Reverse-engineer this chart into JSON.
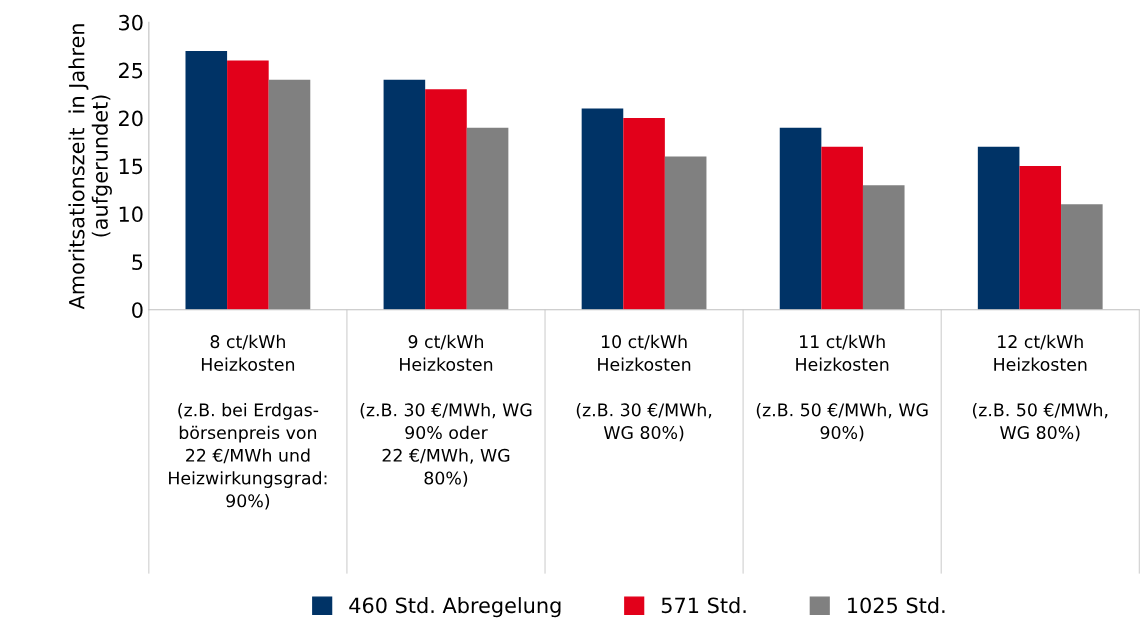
{
  "chart_data": {
    "type": "bar",
    "ylabel": "Amoritsationszeit  in Jahren\n(aufgerundet)",
    "categories": [
      "8 ct/kWh\nHeizkosten\n\n(z.B. bei Erdgas-\nbörsenpreis von\n22 €/MWh und\nHeizwirkungsgrad:\n90%)",
      "9 ct/kWh\nHeizkosten\n\n(z.B. 30 €/MWh, WG\n90% oder\n22 €/MWh, WG\n80%)",
      "10 ct/kWh\nHeizkosten\n\n(z.B. 30 €/MWh,\nWG 80%)",
      "11 ct/kWh\nHeizkosten\n\n(z.B. 50 €/MWh, WG\n90%)",
      "12 ct/kWh\nHeizkosten\n\n(z.B. 50 €/MWh,\nWG 80%)"
    ],
    "series": [
      {
        "name": "460 Std. Abregelung",
        "color": "#003366",
        "values": [
          27,
          24,
          21,
          19,
          17
        ]
      },
      {
        "name": "571 Std.",
        "color": "#e2001a",
        "values": [
          26,
          23,
          20,
          17,
          15
        ]
      },
      {
        "name": "1025 Std.",
        "color": "#808080",
        "values": [
          24,
          19,
          16,
          13,
          11
        ]
      }
    ],
    "ylim": [
      0,
      30
    ],
    "yticks": [
      0,
      5,
      10,
      15,
      20,
      25,
      30
    ],
    "grid": false,
    "legend": "bottom"
  }
}
